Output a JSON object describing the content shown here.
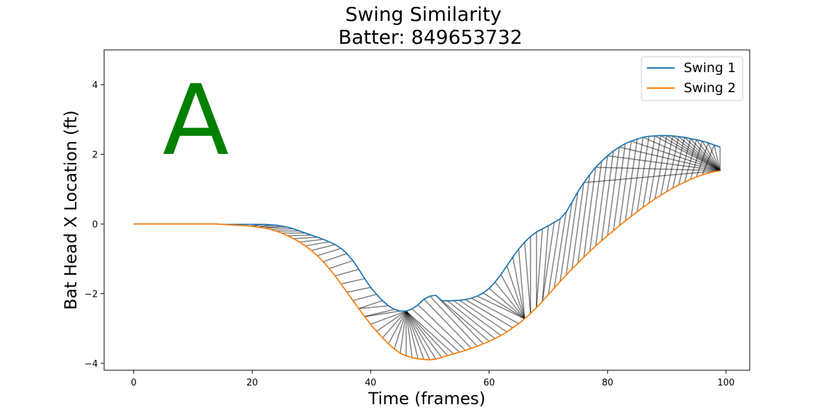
{
  "chart_data": {
    "type": "line",
    "title": "Swing Similarity",
    "subtitle": "Batter: 849653732",
    "xlabel": "Time (frames)",
    "ylabel": "Bat Head X Location (ft)",
    "xlim": [
      -5,
      104
    ],
    "ylim": [
      -4.2,
      5.0
    ],
    "xticks": [
      0,
      20,
      40,
      60,
      80,
      100
    ],
    "yticks": [
      -4,
      -2,
      0,
      2,
      4
    ],
    "xtick_labels": [
      "0",
      "20",
      "40",
      "60",
      "80",
      "100"
    ],
    "ytick_labels": [
      "−4",
      "−2",
      "0",
      "2",
      "4"
    ],
    "grid": false,
    "legend_position": "upper-right",
    "panel_letter": "A",
    "panel_letter_color": "#008000",
    "alignment_line_color": "#000000",
    "series": [
      {
        "name": "Swing 1",
        "color": "#1f77b4",
        "x_start": 0,
        "values": [
          0,
          0,
          0,
          0,
          0,
          0,
          0,
          0,
          0,
          0,
          0,
          0,
          0,
          0,
          0,
          -0.01,
          -0.01,
          -0.01,
          -0.01,
          -0.01,
          -0.01,
          -0.01,
          -0.01,
          -0.02,
          -0.03,
          -0.06,
          -0.09,
          -0.14,
          -0.2,
          -0.26,
          -0.32,
          -0.38,
          -0.44,
          -0.51,
          -0.59,
          -0.7,
          -0.85,
          -1.05,
          -1.3,
          -1.57,
          -1.82,
          -2.02,
          -2.2,
          -2.35,
          -2.45,
          -2.5,
          -2.5,
          -2.44,
          -2.32,
          -2.16,
          -2.07,
          -2.05,
          -2.2,
          -2.21,
          -2.2,
          -2.19,
          -2.17,
          -2.13,
          -2.07,
          -1.98,
          -1.85,
          -1.67,
          -1.45,
          -1.2,
          -0.95,
          -0.72,
          -0.52,
          -0.36,
          -0.23,
          -0.14,
          -0.05,
          0.05,
          0.15,
          0.34,
          0.63,
          0.93,
          1.19,
          1.42,
          1.63,
          1.8,
          1.96,
          2.1,
          2.21,
          2.31,
          2.38,
          2.44,
          2.49,
          2.52,
          2.53,
          2.54,
          2.54,
          2.53,
          2.51,
          2.49,
          2.45,
          2.42,
          2.38,
          2.33,
          2.27,
          2.21
        ]
      },
      {
        "name": "Swing 2",
        "color": "#ff7f0e",
        "x_start": 0,
        "values": [
          0,
          0,
          0,
          0,
          0,
          0,
          0,
          0,
          0,
          0,
          0,
          0,
          0,
          0,
          0,
          -0.01,
          -0.02,
          -0.03,
          -0.04,
          -0.05,
          -0.07,
          -0.09,
          -0.11,
          -0.15,
          -0.2,
          -0.26,
          -0.34,
          -0.42,
          -0.52,
          -0.63,
          -0.76,
          -0.91,
          -1.08,
          -1.28,
          -1.49,
          -1.72,
          -1.96,
          -2.2,
          -2.43,
          -2.66,
          -2.88,
          -3.08,
          -3.27,
          -3.44,
          -3.59,
          -3.71,
          -3.79,
          -3.84,
          -3.87,
          -3.89,
          -3.9,
          -3.88,
          -3.83,
          -3.78,
          -3.73,
          -3.68,
          -3.63,
          -3.57,
          -3.51,
          -3.44,
          -3.37,
          -3.29,
          -3.2,
          -3.1,
          -2.98,
          -2.86,
          -2.72,
          -2.57,
          -2.4,
          -2.22,
          -2.03,
          -1.84,
          -1.65,
          -1.47,
          -1.29,
          -1.12,
          -0.95,
          -0.79,
          -0.63,
          -0.48,
          -0.33,
          -0.19,
          -0.05,
          0.09,
          0.22,
          0.35,
          0.48,
          0.6,
          0.72,
          0.83,
          0.93,
          1.03,
          1.12,
          1.2,
          1.28,
          1.35,
          1.41,
          1.46,
          1.5,
          1.53
        ]
      }
    ],
    "alignment_pairs": [
      [
        0,
        0
      ],
      [
        1,
        1
      ],
      [
        2,
        2
      ],
      [
        3,
        3
      ],
      [
        4,
        4
      ],
      [
        5,
        5
      ],
      [
        6,
        6
      ],
      [
        7,
        7
      ],
      [
        8,
        8
      ],
      [
        9,
        9
      ],
      [
        10,
        10
      ],
      [
        11,
        11
      ],
      [
        12,
        12
      ],
      [
        13,
        13
      ],
      [
        14,
        14
      ],
      [
        15,
        15
      ],
      [
        16,
        16
      ],
      [
        17,
        17
      ],
      [
        18,
        18
      ],
      [
        19,
        19
      ],
      [
        20,
        20
      ],
      [
        21,
        20
      ],
      [
        22,
        20
      ],
      [
        23,
        21
      ],
      [
        24,
        21
      ],
      [
        25,
        22
      ],
      [
        26,
        22
      ],
      [
        27,
        23
      ],
      [
        28,
        24
      ],
      [
        29,
        25
      ],
      [
        30,
        26
      ],
      [
        31,
        27
      ],
      [
        32,
        28
      ],
      [
        33,
        29
      ],
      [
        34,
        30
      ],
      [
        35,
        31
      ],
      [
        36,
        32
      ],
      [
        37,
        33
      ],
      [
        38,
        34
      ],
      [
        39,
        35
      ],
      [
        40,
        36
      ],
      [
        41,
        37
      ],
      [
        42,
        38
      ],
      [
        43,
        38
      ],
      [
        44,
        39
      ],
      [
        45,
        39
      ],
      [
        46,
        40
      ],
      [
        46,
        41
      ],
      [
        46,
        42
      ],
      [
        46,
        43
      ],
      [
        46,
        44
      ],
      [
        46,
        45
      ],
      [
        46,
        46
      ],
      [
        46,
        47
      ],
      [
        46,
        48
      ],
      [
        46,
        49
      ],
      [
        46,
        50
      ],
      [
        46,
        51
      ],
      [
        46,
        52
      ],
      [
        46,
        53
      ],
      [
        46,
        54
      ],
      [
        47,
        55
      ],
      [
        48,
        56
      ],
      [
        49,
        57
      ],
      [
        50,
        58
      ],
      [
        51,
        59
      ],
      [
        52,
        60
      ],
      [
        53,
        61
      ],
      [
        54,
        62
      ],
      [
        55,
        63
      ],
      [
        56,
        64
      ],
      [
        57,
        65
      ],
      [
        58,
        66
      ],
      [
        59,
        66
      ],
      [
        60,
        66
      ],
      [
        61,
        66
      ],
      [
        62,
        66
      ],
      [
        63,
        66
      ],
      [
        64,
        66
      ],
      [
        65,
        66
      ],
      [
        66,
        67
      ],
      [
        67,
        67
      ],
      [
        68,
        68
      ],
      [
        69,
        68
      ],
      [
        70,
        69
      ],
      [
        71,
        69
      ],
      [
        72,
        70
      ],
      [
        73,
        71
      ],
      [
        74,
        72
      ],
      [
        75,
        73
      ],
      [
        76,
        74
      ],
      [
        77,
        75
      ],
      [
        78,
        76
      ],
      [
        79,
        77
      ],
      [
        80,
        78
      ],
      [
        81,
        79
      ],
      [
        82,
        80
      ],
      [
        83,
        81
      ],
      [
        84,
        82
      ],
      [
        85,
        83
      ],
      [
        86,
        84
      ],
      [
        87,
        85
      ],
      [
        88,
        86
      ],
      [
        89,
        87
      ],
      [
        90,
        88
      ],
      [
        91,
        89
      ],
      [
        92,
        90
      ],
      [
        93,
        91
      ],
      [
        94,
        92
      ],
      [
        95,
        93
      ],
      [
        96,
        94
      ],
      [
        97,
        95
      ],
      [
        98,
        96
      ],
      [
        88,
        99
      ],
      [
        89,
        99
      ],
      [
        90,
        99
      ],
      [
        91,
        99
      ],
      [
        92,
        99
      ],
      [
        93,
        99
      ],
      [
        94,
        99
      ],
      [
        95,
        99
      ],
      [
        96,
        99
      ],
      [
        97,
        99
      ],
      [
        98,
        99
      ],
      [
        99,
        99
      ],
      [
        80,
        99
      ],
      [
        82,
        99
      ],
      [
        84,
        99
      ],
      [
        86,
        99
      ],
      [
        78,
        99
      ],
      [
        76,
        99
      ]
    ]
  }
}
